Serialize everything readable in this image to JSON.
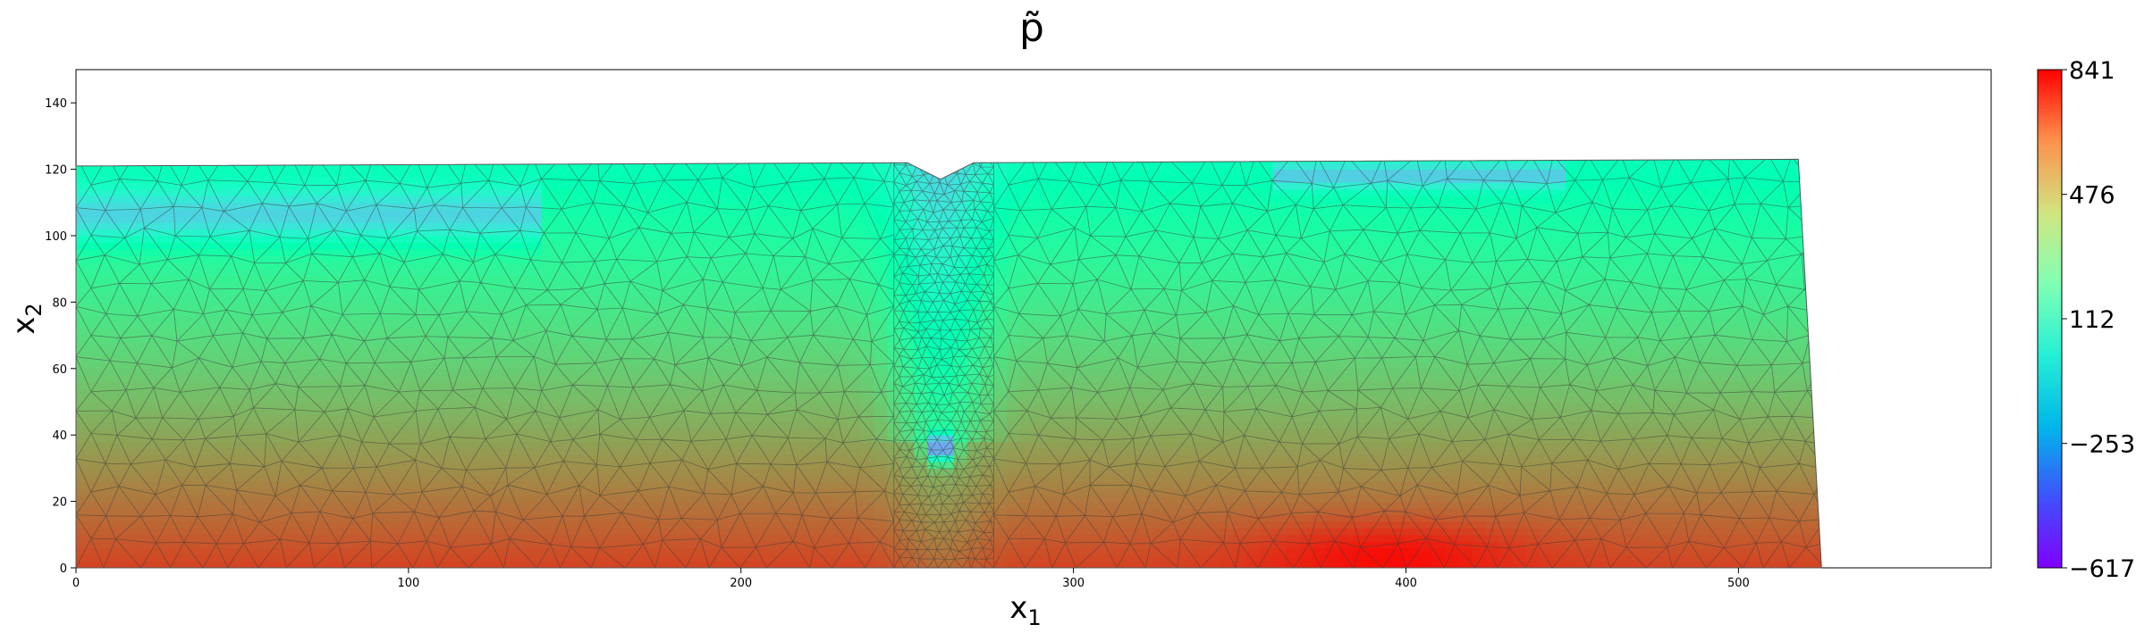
{
  "chart_data": {
    "type": "heatmap",
    "title": "p̃",
    "xlabel": "x",
    "xlabel_sub": "1",
    "ylabel": "x",
    "ylabel_sub": "2",
    "xlim": [
      0,
      576
    ],
    "ylim": [
      0,
      150
    ],
    "xticks": [
      0,
      100,
      200,
      300,
      400,
      500
    ],
    "yticks": [
      0,
      20,
      40,
      60,
      80,
      100,
      120,
      140
    ],
    "colorbar": {
      "min": -617,
      "max": 841,
      "ticks": [
        {
          "value": 841,
          "label": "841"
        },
        {
          "value": 476,
          "label": "476"
        },
        {
          "value": 112,
          "label": "112"
        },
        {
          "value": -253,
          "label": "−253"
        },
        {
          "value": -617,
          "label": "−617"
        }
      ],
      "colormap": "rainbow"
    },
    "domain_outline": [
      [
        0,
        121
      ],
      [
        250,
        122
      ],
      [
        260,
        117
      ],
      [
        270,
        122
      ],
      [
        518,
        123
      ],
      [
        525,
        0
      ],
      [
        0,
        0
      ]
    ],
    "mesh": "triangular finite element mesh, refined near x1≈260",
    "grid": false,
    "legend": "none"
  }
}
